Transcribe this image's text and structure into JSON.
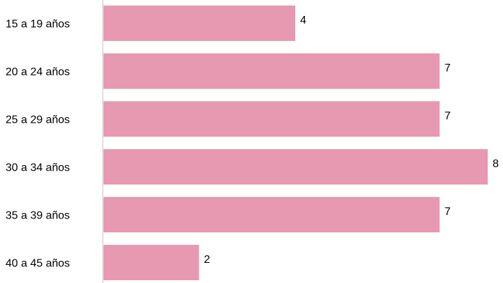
{
  "chart_data": {
    "type": "bar",
    "orientation": "horizontal",
    "categories": [
      "15 a 19 años",
      "20 a 24 años",
      "25 a 29 años",
      "30 a 34 años",
      "35 a 39 años",
      "40 a 45 años"
    ],
    "values": [
      4,
      7,
      7,
      8,
      7,
      2
    ],
    "data_labels": [
      "4",
      "7",
      "7",
      "8",
      "7",
      "2"
    ],
    "xlim": [
      0,
      8
    ],
    "grid": false,
    "legend": "none",
    "bar_color": "#e799b2",
    "axis_color": "#bfbfbf"
  }
}
